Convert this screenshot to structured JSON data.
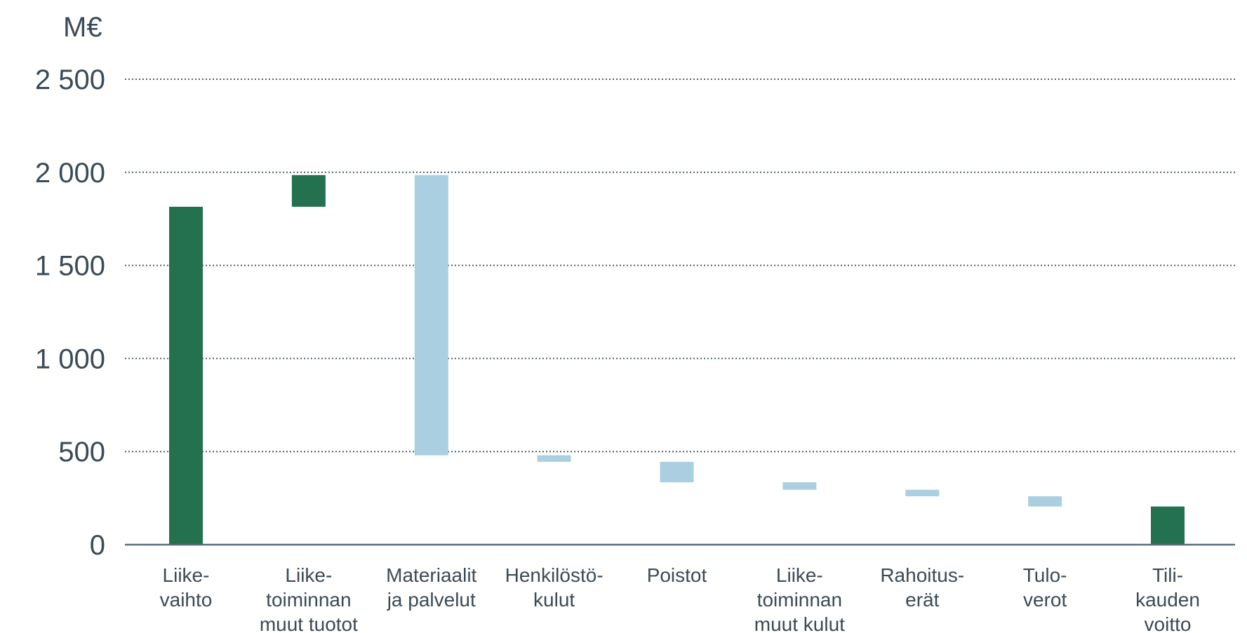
{
  "chart_data": {
    "type": "bar",
    "subtype": "waterfall",
    "unit_label": "M€",
    "ylim": [
      0,
      2500
    ],
    "y_ticks": [
      "0",
      "500",
      "1 000",
      "1 500",
      "2 000",
      "2 500"
    ],
    "y_tick_values": [
      0,
      500,
      1000,
      1500,
      2000,
      2500
    ],
    "grid": true,
    "categories": [
      [
        "Liike-",
        "vaihto"
      ],
      [
        "Liike-",
        "toiminnan",
        "muut tuotot"
      ],
      [
        "Materiaalit",
        "ja palvelut"
      ],
      [
        "Henkilöstö-",
        "kulut"
      ],
      [
        "Poistot"
      ],
      [
        "Liike-",
        "toiminnan",
        "muut kulut"
      ],
      [
        "Rahoitus-",
        "erät"
      ],
      [
        "Tulo-",
        "verot"
      ],
      [
        "Tili-",
        "kauden",
        "voitto"
      ]
    ],
    "bars": [
      {
        "start": 0,
        "end": 1815,
        "kind": "total"
      },
      {
        "start": 1815,
        "end": 1985,
        "kind": "increase"
      },
      {
        "start": 1985,
        "end": 480,
        "kind": "decrease"
      },
      {
        "start": 480,
        "end": 445,
        "kind": "decrease"
      },
      {
        "start": 445,
        "end": 335,
        "kind": "decrease"
      },
      {
        "start": 335,
        "end": 295,
        "kind": "decrease"
      },
      {
        "start": 295,
        "end": 260,
        "kind": "decrease"
      },
      {
        "start": 260,
        "end": 205,
        "kind": "decrease"
      },
      {
        "start": 0,
        "end": 205,
        "kind": "total"
      }
    ],
    "colors": {
      "total": "#23714f",
      "increase": "#23714f",
      "decrease": "#aacfe0",
      "grid": "#4f5f6b",
      "axis": "#5a6b78",
      "text": "#3b4a56"
    }
  }
}
